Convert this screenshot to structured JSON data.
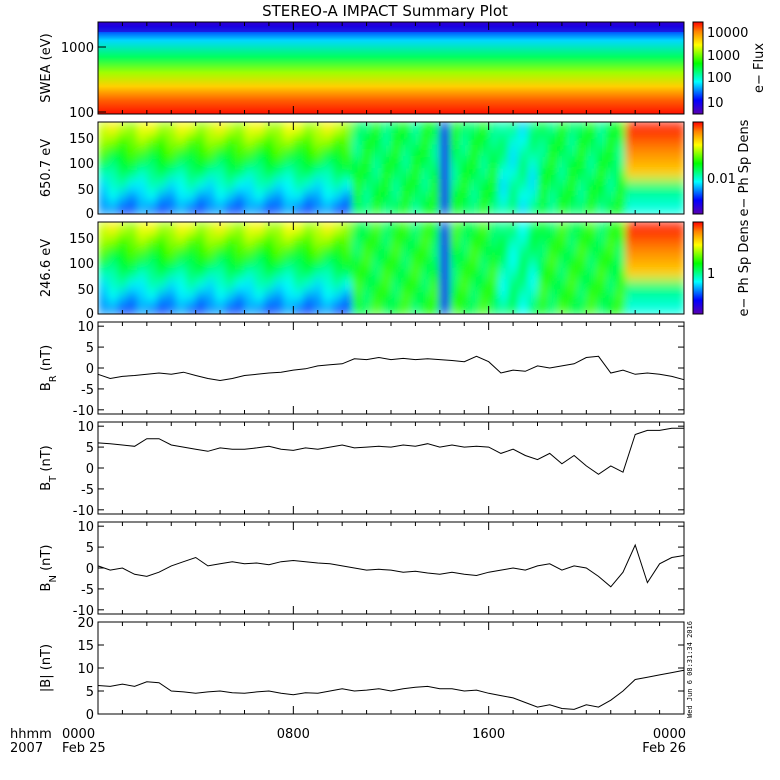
{
  "title": "STEREO-A IMPACT Summary Plot",
  "timestamp": "Wed Jun  6 08:31:34 2016",
  "time_axis": {
    "corner_labels": [
      "hhmm",
      "2007"
    ],
    "ticks": [
      {
        "hhmm": "0000",
        "date": "Feb 25",
        "hour": 0
      },
      {
        "hhmm": "0800",
        "date": "",
        "hour": 8
      },
      {
        "hhmm": "1600",
        "date": "",
        "hour": 16
      },
      {
        "hhmm": "0000",
        "date": "Feb 26",
        "hour": 24
      }
    ]
  },
  "chart_data": [
    {
      "type": "heatmap",
      "ylabel": "SWEA (eV)",
      "y_scale": "log",
      "ylim": [
        95,
        2000
      ],
      "y_ticks": [
        "1000",
        "100"
      ],
      "colorbar": {
        "label": "e− Flux",
        "ticks": [
          "10000",
          "1000",
          "100",
          "10"
        ]
      },
      "description_colors": [
        "#0000cc",
        "#00ffff",
        "#00ff00",
        "#ffff00",
        "#ff0000"
      ]
    },
    {
      "type": "heatmap",
      "ylabel": "650.7 eV",
      "ylim": [
        0,
        180
      ],
      "y_ticks": [
        "150",
        "100",
        "50",
        "0"
      ],
      "colorbar": {
        "label": "e− Ph Sp Dens",
        "ticks": [
          "0.01"
        ]
      }
    },
    {
      "type": "heatmap",
      "ylabel": "246.6 eV",
      "ylim": [
        0,
        180
      ],
      "y_ticks": [
        "150",
        "100",
        "50",
        "0"
      ],
      "colorbar": {
        "label": "e− Ph Sp Dens",
        "ticks": [
          "1"
        ]
      }
    },
    {
      "type": "line",
      "ylabel": "B_R (nT)",
      "ylabel_main": "B",
      "ylabel_sub": "R",
      "ylabel_tail": " (nT)",
      "ylim": [
        -11,
        11
      ],
      "y_ticks": [
        10,
        5,
        0,
        -5,
        -10
      ],
      "x": [
        0,
        0.5,
        1,
        1.5,
        2,
        2.5,
        3,
        3.5,
        4,
        4.5,
        5,
        5.5,
        6,
        6.5,
        7,
        7.5,
        8,
        8.5,
        9,
        9.5,
        10,
        10.5,
        11,
        11.5,
        12,
        12.5,
        13,
        13.5,
        14,
        14.5,
        15,
        15.5,
        16,
        16.5,
        17,
        17.5,
        18,
        18.5,
        19,
        19.5,
        20,
        20.5,
        21,
        21.5,
        22,
        22.5,
        23,
        23.5,
        24
      ],
      "values": [
        -1.5,
        -2.5,
        -2.0,
        -1.8,
        -1.5,
        -1.2,
        -1.5,
        -1.0,
        -1.8,
        -2.5,
        -3.0,
        -2.5,
        -1.8,
        -1.5,
        -1.2,
        -1.0,
        -0.5,
        -0.2,
        0.5,
        0.8,
        1.0,
        2.2,
        2.0,
        2.5,
        2.0,
        2.3,
        2.0,
        2.2,
        2.0,
        1.8,
        1.5,
        2.8,
        1.5,
        -1.2,
        -0.5,
        -0.8,
        0.5,
        0.0,
        0.5,
        1.0,
        2.5,
        2.8,
        -1.2,
        -0.5,
        -1.5,
        -1.2,
        -1.5,
        -2.0,
        -2.8
      ]
    },
    {
      "type": "line",
      "ylabel": "B_T (nT)",
      "ylabel_main": "B",
      "ylabel_sub": "T",
      "ylabel_tail": " (nT)",
      "ylim": [
        -11,
        11
      ],
      "y_ticks": [
        10,
        5,
        0,
        -5,
        -10
      ],
      "x": [
        0,
        0.5,
        1,
        1.5,
        2,
        2.5,
        3,
        3.5,
        4,
        4.5,
        5,
        5.5,
        6,
        6.5,
        7,
        7.5,
        8,
        8.5,
        9,
        9.5,
        10,
        10.5,
        11,
        11.5,
        12,
        12.5,
        13,
        13.5,
        14,
        14.5,
        15,
        15.5,
        16,
        16.5,
        17,
        17.5,
        18,
        18.5,
        19,
        19.5,
        20,
        20.5,
        21,
        21.5,
        22,
        22.5,
        23,
        23.5,
        24
      ],
      "values": [
        6.0,
        5.8,
        5.5,
        5.2,
        7.0,
        7.0,
        5.5,
        5.0,
        4.5,
        4.0,
        4.8,
        4.5,
        4.5,
        4.8,
        5.2,
        4.5,
        4.2,
        4.8,
        4.5,
        5.0,
        5.5,
        4.8,
        5.0,
        5.2,
        5.0,
        5.5,
        5.2,
        5.8,
        5.0,
        5.5,
        5.0,
        5.2,
        5.0,
        3.5,
        4.5,
        3.0,
        2.0,
        3.5,
        1.0,
        3.0,
        0.5,
        -1.5,
        0.5,
        -1.0,
        8.0,
        9.0,
        9.0,
        9.5,
        9.5
      ]
    },
    {
      "type": "line",
      "ylabel": "B_N (nT)",
      "ylabel_main": "B",
      "ylabel_sub": "N",
      "ylabel_tail": " (nT)",
      "ylim": [
        -11,
        11
      ],
      "y_ticks": [
        10,
        5,
        0,
        -5,
        -10
      ],
      "x": [
        0,
        0.5,
        1,
        1.5,
        2,
        2.5,
        3,
        3.5,
        4,
        4.5,
        5,
        5.5,
        6,
        6.5,
        7,
        7.5,
        8,
        8.5,
        9,
        9.5,
        10,
        10.5,
        11,
        11.5,
        12,
        12.5,
        13,
        13.5,
        14,
        14.5,
        15,
        15.5,
        16,
        16.5,
        17,
        17.5,
        18,
        18.5,
        19,
        19.5,
        20,
        20.5,
        21,
        21.5,
        22,
        22.5,
        23,
        23.5,
        24
      ],
      "values": [
        0.5,
        -0.5,
        0.0,
        -1.5,
        -2.0,
        -1.0,
        0.5,
        1.5,
        2.5,
        0.5,
        1.0,
        1.5,
        1.0,
        1.2,
        0.8,
        1.5,
        1.8,
        1.5,
        1.2,
        1.0,
        0.5,
        0.0,
        -0.5,
        -0.3,
        -0.5,
        -1.0,
        -0.8,
        -1.2,
        -1.5,
        -1.0,
        -1.5,
        -1.8,
        -1.0,
        -0.5,
        0.0,
        -0.5,
        0.5,
        1.0,
        -0.5,
        0.5,
        0.0,
        -2.0,
        -4.5,
        -1.0,
        5.5,
        -3.5,
        1.0,
        2.5,
        3.0
      ]
    },
    {
      "type": "line",
      "ylabel": "|B| (nT)",
      "ylabel_main": "|B|",
      "ylabel_sub": "",
      "ylabel_tail": " (nT)",
      "ylim": [
        0,
        20
      ],
      "y_ticks": [
        20,
        15,
        10,
        5,
        0
      ],
      "x": [
        0,
        0.5,
        1,
        1.5,
        2,
        2.5,
        3,
        3.5,
        4,
        4.5,
        5,
        5.5,
        6,
        6.5,
        7,
        7.5,
        8,
        8.5,
        9,
        9.5,
        10,
        10.5,
        11,
        11.5,
        12,
        12.5,
        13,
        13.5,
        14,
        14.5,
        15,
        15.5,
        16,
        16.5,
        17,
        17.5,
        18,
        18.5,
        19,
        19.5,
        20,
        20.5,
        21,
        21.5,
        22,
        22.5,
        23,
        23.5,
        24
      ],
      "values": [
        6.2,
        6.0,
        6.5,
        6.0,
        7.0,
        6.8,
        5.0,
        4.8,
        4.5,
        4.8,
        5.0,
        4.6,
        4.5,
        4.8,
        5.0,
        4.5,
        4.2,
        4.6,
        4.5,
        5.0,
        5.5,
        5.0,
        5.2,
        5.5,
        5.0,
        5.5,
        5.8,
        6.0,
        5.5,
        5.5,
        5.0,
        5.2,
        4.5,
        4.0,
        3.5,
        2.5,
        1.5,
        2.0,
        1.2,
        1.0,
        2.0,
        1.5,
        3.0,
        5.0,
        7.5,
        8.0,
        8.5,
        9.0,
        9.5
      ]
    }
  ]
}
